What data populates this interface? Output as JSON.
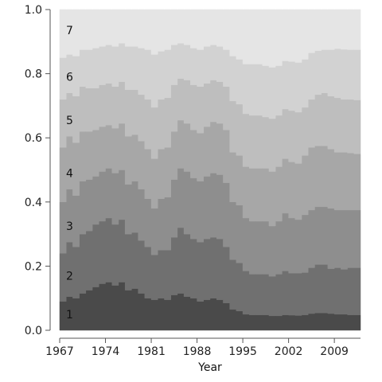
{
  "chart_data": {
    "type": "area",
    "style": "stepped-stacked-cumulative",
    "xlabel": "Year",
    "ylabel": "",
    "title": "",
    "xlim": [
      1967,
      2013
    ],
    "ylim": [
      0,
      1
    ],
    "grid": false,
    "x_ticks": [
      {
        "value": 1967,
        "label": "1967"
      },
      {
        "value": 1974,
        "label": "1974"
      },
      {
        "value": 1981,
        "label": "1981"
      },
      {
        "value": 1988,
        "label": "1988"
      },
      {
        "value": 1995,
        "label": "1995"
      },
      {
        "value": 2002,
        "label": "2002"
      },
      {
        "value": 2009,
        "label": "2009"
      }
    ],
    "y_ticks": [
      {
        "value": 0.0,
        "label": "0.0"
      },
      {
        "value": 0.2,
        "label": "0.2"
      },
      {
        "value": 0.4,
        "label": "0.4"
      },
      {
        "value": 0.6,
        "label": "0.6"
      },
      {
        "value": 0.8,
        "label": "0.8"
      },
      {
        "value": 1.0,
        "label": "1.0"
      }
    ],
    "x": [
      1967,
      1968,
      1969,
      1970,
      1971,
      1972,
      1973,
      1974,
      1975,
      1976,
      1977,
      1978,
      1979,
      1980,
      1981,
      1982,
      1983,
      1984,
      1985,
      1986,
      1987,
      1988,
      1989,
      1990,
      1991,
      1992,
      1993,
      1994,
      1995,
      1996,
      1997,
      1998,
      1999,
      2000,
      2001,
      2002,
      2003,
      2004,
      2005,
      2006,
      2007,
      2008,
      2009,
      2010,
      2011,
      2012
    ],
    "series": [
      {
        "name": "1",
        "color": "#4a4a4a",
        "label_y": 0.05,
        "values": [
          0.09,
          0.105,
          0.1,
          0.115,
          0.125,
          0.135,
          0.145,
          0.15,
          0.14,
          0.15,
          0.125,
          0.13,
          0.115,
          0.1,
          0.095,
          0.1,
          0.095,
          0.11,
          0.115,
          0.105,
          0.1,
          0.09,
          0.095,
          0.1,
          0.095,
          0.085,
          0.065,
          0.06,
          0.05,
          0.048,
          0.048,
          0.048,
          0.045,
          0.045,
          0.048,
          0.047,
          0.046,
          0.048,
          0.052,
          0.054,
          0.054,
          0.052,
          0.05,
          0.05,
          0.048,
          0.048
        ]
      },
      {
        "name": "2",
        "color": "#707070",
        "label_y": 0.17,
        "values": [
          0.24,
          0.275,
          0.26,
          0.3,
          0.31,
          0.33,
          0.34,
          0.35,
          0.33,
          0.345,
          0.3,
          0.305,
          0.28,
          0.26,
          0.235,
          0.25,
          0.25,
          0.29,
          0.32,
          0.3,
          0.285,
          0.275,
          0.285,
          0.29,
          0.285,
          0.26,
          0.22,
          0.21,
          0.185,
          0.175,
          0.175,
          0.175,
          0.168,
          0.175,
          0.185,
          0.178,
          0.178,
          0.18,
          0.195,
          0.205,
          0.205,
          0.192,
          0.195,
          0.19,
          0.195,
          0.195
        ]
      },
      {
        "name": "3",
        "color": "#8e8e8e",
        "label_y": 0.325,
        "values": [
          0.4,
          0.44,
          0.42,
          0.465,
          0.47,
          0.48,
          0.495,
          0.505,
          0.49,
          0.5,
          0.455,
          0.465,
          0.44,
          0.41,
          0.38,
          0.41,
          0.415,
          0.47,
          0.505,
          0.495,
          0.475,
          0.465,
          0.48,
          0.49,
          0.485,
          0.46,
          0.4,
          0.39,
          0.35,
          0.34,
          0.34,
          0.34,
          0.325,
          0.34,
          0.365,
          0.35,
          0.345,
          0.36,
          0.375,
          0.385,
          0.385,
          0.38,
          0.375,
          0.375,
          0.375,
          0.375
        ]
      },
      {
        "name": "4",
        "color": "#a7a7a7",
        "label_y": 0.49,
        "values": [
          0.57,
          0.605,
          0.585,
          0.62,
          0.62,
          0.625,
          0.635,
          0.64,
          0.63,
          0.645,
          0.605,
          0.61,
          0.59,
          0.565,
          0.535,
          0.565,
          0.57,
          0.62,
          0.655,
          0.645,
          0.625,
          0.615,
          0.635,
          0.65,
          0.645,
          0.625,
          0.555,
          0.545,
          0.51,
          0.505,
          0.505,
          0.505,
          0.495,
          0.51,
          0.535,
          0.525,
          0.52,
          0.545,
          0.57,
          0.575,
          0.575,
          0.565,
          0.555,
          0.555,
          0.553,
          0.55
        ]
      },
      {
        "name": "5",
        "color": "#bebebe",
        "label_y": 0.655,
        "values": [
          0.72,
          0.74,
          0.73,
          0.76,
          0.755,
          0.755,
          0.765,
          0.77,
          0.76,
          0.775,
          0.75,
          0.75,
          0.735,
          0.72,
          0.695,
          0.72,
          0.725,
          0.765,
          0.785,
          0.78,
          0.765,
          0.76,
          0.77,
          0.78,
          0.775,
          0.76,
          0.715,
          0.705,
          0.675,
          0.67,
          0.67,
          0.665,
          0.66,
          0.67,
          0.69,
          0.685,
          0.68,
          0.695,
          0.72,
          0.735,
          0.74,
          0.73,
          0.725,
          0.72,
          0.72,
          0.718
        ]
      },
      {
        "name": "6",
        "color": "#d2d2d2",
        "label_y": 0.79,
        "values": [
          0.85,
          0.86,
          0.855,
          0.875,
          0.875,
          0.88,
          0.885,
          0.89,
          0.885,
          0.895,
          0.885,
          0.885,
          0.88,
          0.875,
          0.86,
          0.87,
          0.875,
          0.89,
          0.895,
          0.89,
          0.88,
          0.875,
          0.885,
          0.89,
          0.885,
          0.875,
          0.855,
          0.845,
          0.83,
          0.83,
          0.83,
          0.825,
          0.82,
          0.825,
          0.84,
          0.838,
          0.835,
          0.845,
          0.865,
          0.872,
          0.875,
          0.875,
          0.878,
          0.876,
          0.875,
          0.875
        ]
      },
      {
        "name": "7",
        "color": "#e5e5e5",
        "label_y": 0.935,
        "values": [
          1,
          1,
          1,
          1,
          1,
          1,
          1,
          1,
          1,
          1,
          1,
          1,
          1,
          1,
          1,
          1,
          1,
          1,
          1,
          1,
          1,
          1,
          1,
          1,
          1,
          1,
          1,
          1,
          1,
          1,
          1,
          1,
          1,
          1,
          1,
          1,
          1,
          1,
          1,
          1,
          1,
          1,
          1,
          1,
          1,
          1
        ]
      }
    ]
  }
}
